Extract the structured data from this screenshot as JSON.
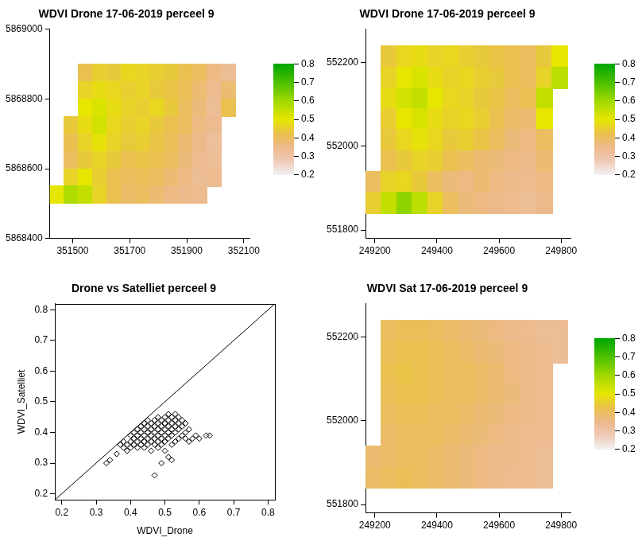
{
  "chart_data": [
    {
      "type": "heatmap",
      "title": "WDVI Drone 17-06-2019 perceel 9",
      "x": [
        351445,
        351495,
        351545,
        351595,
        351645,
        351695,
        351745,
        351795,
        351845,
        351895,
        351945,
        351995,
        352045,
        352095
      ],
      "y": [
        5868875,
        5868825,
        5868775,
        5868725,
        5868675,
        5868625,
        5868575,
        5868525
      ],
      "values": [
        [
          null,
          null,
          0.42,
          0.45,
          0.44,
          0.47,
          0.46,
          0.45,
          0.44,
          0.42,
          0.4,
          0.36,
          0.33,
          null
        ],
        [
          null,
          null,
          0.46,
          0.48,
          0.47,
          0.45,
          0.46,
          0.44,
          0.43,
          0.41,
          0.38,
          0.34,
          0.38,
          null
        ],
        [
          null,
          null,
          0.5,
          0.52,
          0.48,
          0.46,
          0.45,
          0.47,
          0.44,
          0.4,
          0.37,
          0.33,
          0.42,
          null
        ],
        [
          null,
          0.44,
          0.48,
          0.53,
          0.47,
          0.45,
          0.46,
          0.44,
          0.42,
          0.4,
          0.36,
          0.34,
          null,
          null
        ],
        [
          null,
          0.42,
          0.46,
          0.49,
          0.46,
          0.44,
          0.45,
          0.43,
          0.41,
          0.38,
          0.35,
          0.32,
          null,
          null
        ],
        [
          null,
          0.4,
          0.44,
          0.46,
          0.44,
          0.42,
          0.43,
          0.42,
          0.4,
          0.37,
          0.34,
          0.33,
          null,
          null
        ],
        [
          null,
          0.46,
          0.5,
          0.45,
          0.42,
          0.4,
          0.41,
          0.4,
          0.38,
          0.36,
          0.33,
          0.34,
          null,
          null
        ],
        [
          0.5,
          0.58,
          0.55,
          0.46,
          0.42,
          0.39,
          0.4,
          0.38,
          0.36,
          0.35,
          0.34,
          null,
          null,
          null
        ]
      ],
      "xlim": [
        351420,
        352120
      ],
      "ylim": [
        5868400,
        5869000
      ],
      "xticks": [
        351500,
        351700,
        351900,
        352100
      ],
      "yticks": [
        5868400,
        5868600,
        5868800,
        5869000
      ],
      "grid": false,
      "colorbar": {
        "lim": [
          0.2,
          0.8
        ],
        "ticks": [
          0.2,
          0.3,
          0.4,
          0.5,
          0.6,
          0.7,
          0.8
        ]
      }
    },
    {
      "type": "heatmap",
      "title": "WDVI Drone 17-06-2019 perceel 9",
      "x": [
        249195,
        249245,
        249295,
        249345,
        249395,
        249445,
        249495,
        249545,
        249595,
        249645,
        249695,
        249745,
        249795
      ],
      "y": [
        552215,
        552165,
        552115,
        552065,
        552015,
        551965,
        551915,
        551865
      ],
      "values": [
        [
          null,
          0.44,
          0.47,
          0.48,
          0.46,
          0.47,
          0.45,
          0.44,
          0.43,
          0.42,
          0.4,
          0.44,
          0.5
        ],
        [
          null,
          0.46,
          0.5,
          0.52,
          0.48,
          0.46,
          0.47,
          0.45,
          0.44,
          0.42,
          0.4,
          0.46,
          0.56
        ],
        [
          null,
          0.48,
          0.53,
          0.55,
          0.5,
          0.47,
          0.46,
          0.44,
          0.43,
          0.4,
          0.42,
          0.55,
          null
        ],
        [
          null,
          0.45,
          0.5,
          0.52,
          0.48,
          0.46,
          0.47,
          0.45,
          0.42,
          0.39,
          0.38,
          0.5,
          null
        ],
        [
          null,
          0.44,
          0.47,
          0.49,
          0.47,
          0.44,
          0.45,
          0.43,
          0.4,
          0.37,
          0.36,
          0.4,
          null
        ],
        [
          null,
          0.42,
          0.44,
          0.46,
          0.45,
          0.42,
          0.4,
          0.38,
          0.37,
          0.36,
          0.35,
          0.38,
          null
        ],
        [
          0.4,
          0.46,
          0.47,
          0.44,
          0.4,
          0.37,
          0.36,
          0.38,
          0.36,
          0.35,
          0.34,
          0.36,
          null
        ],
        [
          0.45,
          0.55,
          0.62,
          0.56,
          0.46,
          0.4,
          0.37,
          0.36,
          0.35,
          0.34,
          0.33,
          0.35,
          null
        ]
      ],
      "xlim": [
        249170,
        249830
      ],
      "ylim": [
        551780,
        552280
      ],
      "xticks": [
        249200,
        249400,
        249600,
        249800
      ],
      "yticks": [
        551800,
        552000,
        552200
      ],
      "grid": false,
      "colorbar": {
        "lim": [
          0.2,
          0.8
        ],
        "ticks": [
          0.2,
          0.3,
          0.4,
          0.5,
          0.6,
          0.7,
          0.8
        ]
      }
    },
    {
      "type": "scatter",
      "title": "Drone vs Satelliet perceel 9",
      "x_label": "WDVI_Drone",
      "y_label": "WDVI_Satelliet",
      "x": [
        0.33,
        0.34,
        0.36,
        0.37,
        0.38,
        0.38,
        0.39,
        0.39,
        0.4,
        0.4,
        0.4,
        0.41,
        0.41,
        0.41,
        0.42,
        0.42,
        0.42,
        0.42,
        0.43,
        0.43,
        0.43,
        0.43,
        0.44,
        0.44,
        0.44,
        0.44,
        0.44,
        0.45,
        0.45,
        0.45,
        0.45,
        0.45,
        0.46,
        0.46,
        0.46,
        0.46,
        0.46,
        0.47,
        0.47,
        0.47,
        0.47,
        0.47,
        0.47,
        0.48,
        0.48,
        0.48,
        0.48,
        0.48,
        0.48,
        0.49,
        0.49,
        0.49,
        0.49,
        0.49,
        0.49,
        0.5,
        0.5,
        0.5,
        0.5,
        0.5,
        0.5,
        0.51,
        0.51,
        0.51,
        0.51,
        0.51,
        0.51,
        0.52,
        0.52,
        0.52,
        0.52,
        0.52,
        0.52,
        0.53,
        0.53,
        0.53,
        0.53,
        0.53,
        0.54,
        0.54,
        0.54,
        0.54,
        0.55,
        0.55,
        0.55,
        0.56,
        0.56,
        0.56,
        0.57,
        0.57,
        0.58,
        0.59,
        0.6,
        0.62,
        0.63
      ],
      "values": [
        0.3,
        0.31,
        0.33,
        0.36,
        0.35,
        0.37,
        0.36,
        0.34,
        0.37,
        0.35,
        0.39,
        0.36,
        0.38,
        0.4,
        0.35,
        0.37,
        0.39,
        0.41,
        0.36,
        0.38,
        0.4,
        0.42,
        0.35,
        0.37,
        0.39,
        0.41,
        0.43,
        0.36,
        0.38,
        0.4,
        0.42,
        0.44,
        0.34,
        0.37,
        0.39,
        0.41,
        0.43,
        0.26,
        0.36,
        0.38,
        0.4,
        0.42,
        0.44,
        0.35,
        0.37,
        0.39,
        0.41,
        0.43,
        0.45,
        0.3,
        0.36,
        0.38,
        0.4,
        0.42,
        0.44,
        0.34,
        0.37,
        0.39,
        0.41,
        0.43,
        0.45,
        0.32,
        0.38,
        0.4,
        0.42,
        0.44,
        0.46,
        0.31,
        0.36,
        0.39,
        0.41,
        0.43,
        0.45,
        0.37,
        0.4,
        0.42,
        0.44,
        0.46,
        0.38,
        0.41,
        0.43,
        0.45,
        0.39,
        0.42,
        0.44,
        0.38,
        0.4,
        0.43,
        0.37,
        0.41,
        0.38,
        0.39,
        0.38,
        0.39,
        0.39
      ],
      "xlim": [
        0.18,
        0.82
      ],
      "ylim": [
        0.18,
        0.82
      ],
      "xticks": [
        0.2,
        0.3,
        0.4,
        0.5,
        0.6,
        0.7,
        0.8
      ],
      "yticks": [
        0.2,
        0.3,
        0.4,
        0.5,
        0.6,
        0.7,
        0.8
      ],
      "grid": false,
      "marker": "diamond",
      "color": "#000000",
      "reference_line": {
        "x": [
          0.18,
          0.82
        ],
        "values": [
          0.18,
          0.82
        ]
      }
    },
    {
      "type": "heatmap",
      "title": "WDVI Sat 17-06-2019 perceel 9",
      "x": [
        249195,
        249245,
        249295,
        249345,
        249395,
        249445,
        249495,
        249545,
        249595,
        249645,
        249695,
        249745,
        249795
      ],
      "y": [
        552215,
        552165,
        552115,
        552065,
        552015,
        551965,
        551915,
        551865
      ],
      "values": [
        [
          null,
          0.4,
          0.41,
          0.41,
          0.4,
          0.39,
          0.38,
          0.37,
          0.36,
          0.35,
          0.34,
          0.33,
          0.33
        ],
        [
          null,
          0.41,
          0.42,
          0.42,
          0.41,
          0.4,
          0.39,
          0.38,
          0.37,
          0.36,
          0.35,
          0.34,
          0.33
        ],
        [
          null,
          0.42,
          0.43,
          0.42,
          0.41,
          0.4,
          0.4,
          0.39,
          0.38,
          0.36,
          0.35,
          0.34,
          null
        ],
        [
          null,
          0.41,
          0.42,
          0.42,
          0.41,
          0.4,
          0.4,
          0.39,
          0.38,
          0.37,
          0.35,
          0.34,
          null
        ],
        [
          null,
          0.4,
          0.41,
          0.41,
          0.4,
          0.4,
          0.39,
          0.38,
          0.37,
          0.36,
          0.35,
          0.34,
          null
        ],
        [
          null,
          0.39,
          0.4,
          0.4,
          0.4,
          0.39,
          0.38,
          0.37,
          0.36,
          0.35,
          0.34,
          0.34,
          null
        ],
        [
          0.38,
          0.39,
          0.4,
          0.4,
          0.39,
          0.38,
          0.37,
          0.36,
          0.35,
          0.35,
          0.34,
          0.33,
          null
        ],
        [
          0.39,
          0.4,
          0.41,
          0.4,
          0.39,
          0.38,
          0.37,
          0.36,
          0.35,
          0.34,
          0.34,
          0.33,
          null
        ]
      ],
      "xlim": [
        249170,
        249830
      ],
      "ylim": [
        551780,
        552280
      ],
      "xticks": [
        249200,
        249400,
        249600,
        249800
      ],
      "yticks": [
        551800,
        552000,
        552200
      ],
      "grid": false,
      "colorbar": {
        "lim": [
          0.2,
          0.8
        ],
        "ticks": [
          0.2,
          0.3,
          0.4,
          0.5,
          0.6,
          0.7,
          0.8
        ]
      }
    }
  ]
}
